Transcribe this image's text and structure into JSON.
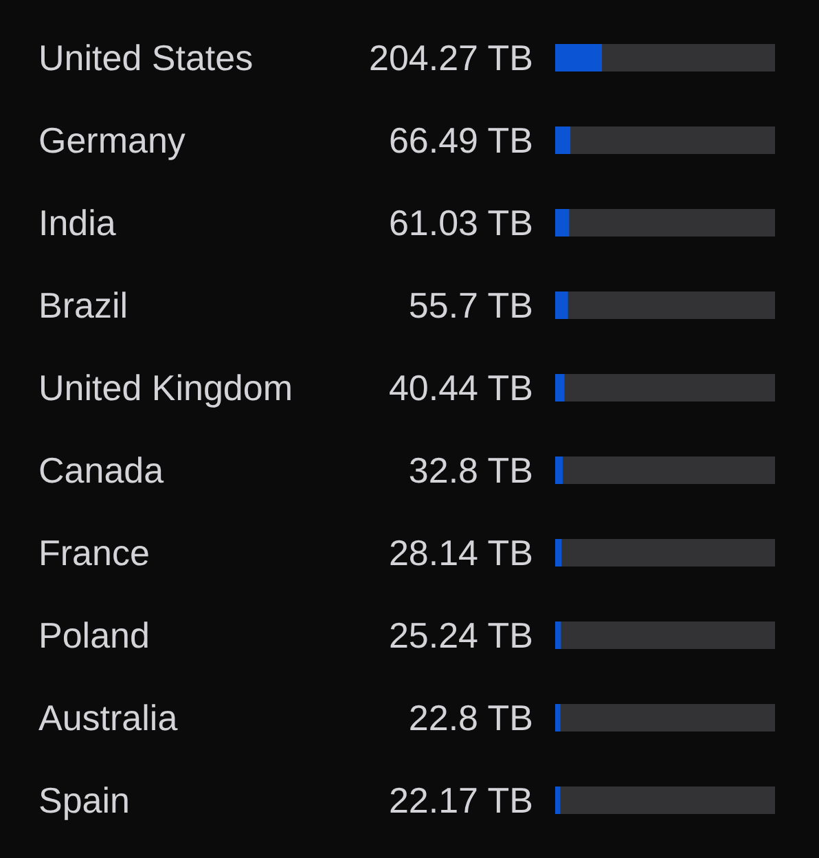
{
  "chart_data": {
    "type": "bar",
    "orientation": "horizontal",
    "categories": [
      "United States",
      "Germany",
      "India",
      "Brazil",
      "United Kingdom",
      "Canada",
      "France",
      "Poland",
      "Australia",
      "Spain"
    ],
    "values": [
      204.27,
      66.49,
      61.03,
      55.7,
      40.44,
      32.8,
      28.14,
      25.24,
      22.8,
      22.17
    ],
    "value_labels": [
      "204.27 TB",
      "66.49 TB",
      "61.03 TB",
      "55.7 TB",
      "40.44 TB",
      "32.8 TB",
      "28.14 TB",
      "25.24 TB",
      "22.8 TB",
      "22.17 TB"
    ],
    "color": "#0b55d4",
    "xlim": [
      0,
      960
    ]
  }
}
